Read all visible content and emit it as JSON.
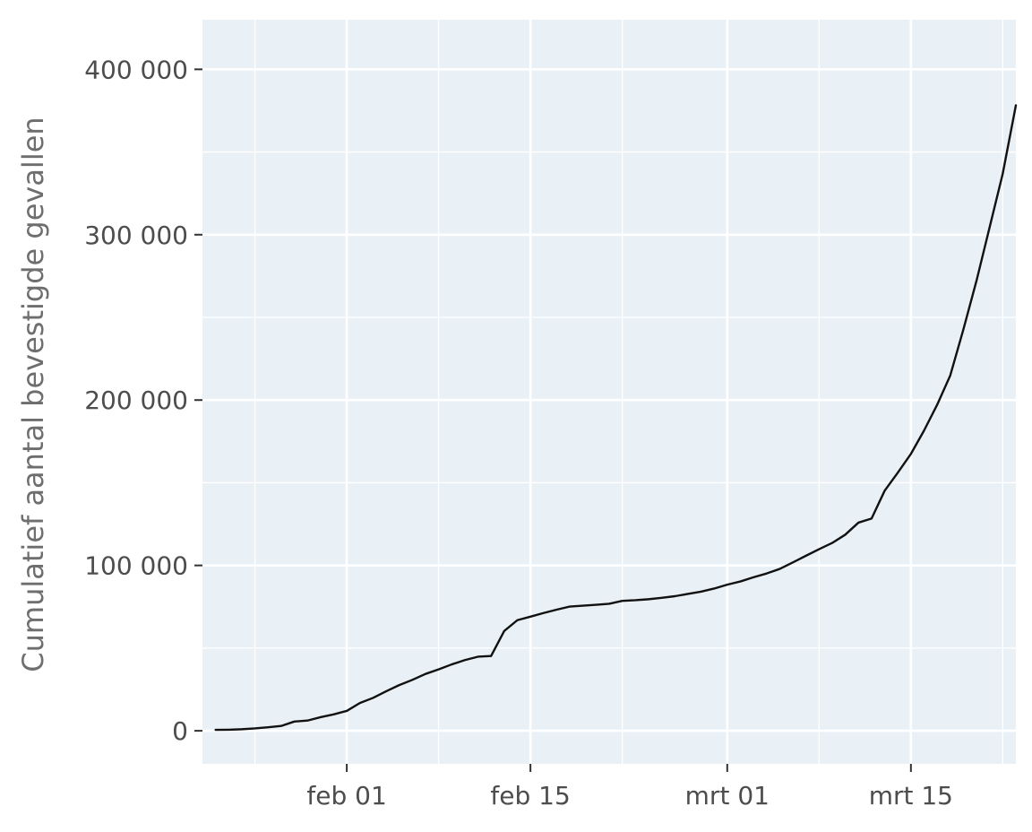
{
  "chart_data": {
    "type": "line",
    "title": "",
    "xlabel": "",
    "ylabel": "Cumulatief aantal bevestigde gevallen",
    "x_type": "date",
    "x_range": [
      "2020-01-21",
      "2020-03-23"
    ],
    "ylim": [
      -20000,
      430000
    ],
    "grid": true,
    "legend": "none",
    "colors": {
      "panel_background": "#e9f1f6",
      "grid": "#ffffff",
      "line": "#111111",
      "tick_text": "#4d4d4d",
      "axis_title": "#6e6e6e"
    },
    "x_ticks": [
      {
        "date": "2020-02-01",
        "label": "feb 01"
      },
      {
        "date": "2020-02-15",
        "label": "feb 15"
      },
      {
        "date": "2020-03-01",
        "label": "mrt 01"
      },
      {
        "date": "2020-03-15",
        "label": "mrt 15"
      }
    ],
    "x_minor_ticks": [
      "2020-01-25",
      "2020-02-08",
      "2020-02-22",
      "2020-03-08",
      "2020-03-22"
    ],
    "y_ticks": [
      {
        "value": 0,
        "label": "0"
      },
      {
        "value": 100000,
        "label": "100 000"
      },
      {
        "value": 200000,
        "label": "200 000"
      },
      {
        "value": 300000,
        "label": "300 000"
      },
      {
        "value": 400000,
        "label": "400 000"
      }
    ],
    "y_minor_ticks": [
      50000,
      150000,
      250000,
      350000
    ],
    "series": [
      {
        "x": [
          "2020-01-22",
          "2020-01-23",
          "2020-01-24",
          "2020-01-25",
          "2020-01-26",
          "2020-01-27",
          "2020-01-28",
          "2020-01-29",
          "2020-01-30",
          "2020-01-31",
          "2020-02-01",
          "2020-02-02",
          "2020-02-03",
          "2020-02-04",
          "2020-02-05",
          "2020-02-06",
          "2020-02-07",
          "2020-02-08",
          "2020-02-09",
          "2020-02-10",
          "2020-02-11",
          "2020-02-12",
          "2020-02-13",
          "2020-02-14",
          "2020-02-15",
          "2020-02-16",
          "2020-02-17",
          "2020-02-18",
          "2020-02-19",
          "2020-02-20",
          "2020-02-21",
          "2020-02-22",
          "2020-02-23",
          "2020-02-24",
          "2020-02-25",
          "2020-02-26",
          "2020-02-27",
          "2020-02-28",
          "2020-02-29",
          "2020-03-01",
          "2020-03-02",
          "2020-03-03",
          "2020-03-04",
          "2020-03-05",
          "2020-03-06",
          "2020-03-07",
          "2020-03-08",
          "2020-03-09",
          "2020-03-10",
          "2020-03-11",
          "2020-03-12",
          "2020-03-13",
          "2020-03-14",
          "2020-03-15",
          "2020-03-16",
          "2020-03-17",
          "2020-03-18",
          "2020-03-19",
          "2020-03-20",
          "2020-03-21",
          "2020-03-22",
          "2020-03-23"
        ],
        "y": [
          555,
          653,
          941,
          1434,
          2118,
          2927,
          5578,
          6166,
          8234,
          9927,
          12038,
          16787,
          19881,
          23892,
          27635,
          30794,
          34391,
          37120,
          40150,
          42762,
          44802,
          45221,
          60368,
          66885,
          69030,
          71224,
          73258,
          75136,
          75639,
          76197,
          76819,
          78572,
          78958,
          79561,
          80406,
          81388,
          82746,
          84112,
          86011,
          88369,
          90306,
          92840,
          95120,
          97886,
          101800,
          105847,
          109821,
          113590,
          118620,
          125875,
          128343,
          145193,
          156099,
          167447,
          181546,
          197168,
          214915,
          242713,
          272167,
          304528,
          336953,
          378235
        ]
      }
    ]
  }
}
